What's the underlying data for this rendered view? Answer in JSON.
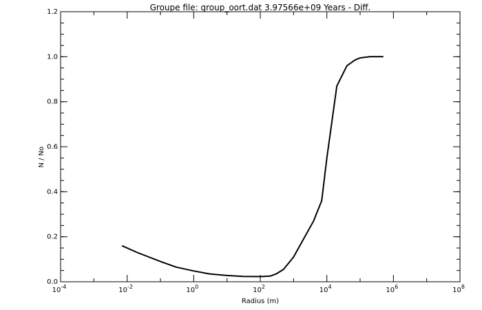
{
  "chart_data": {
    "type": "line",
    "title": "Groupe file: group_oort.dat  3.97566e+09 Years - Diff.",
    "xlabel": "Radius (m)",
    "ylabel": "N / No",
    "xscale": "log",
    "xlim": [
      0.0001,
      100000000
    ],
    "ylim": [
      0.0,
      1.2
    ],
    "x_ticks": [
      {
        "base": "10",
        "exp": "-4",
        "value": 0.0001
      },
      {
        "base": "10",
        "exp": "-2",
        "value": 0.01
      },
      {
        "base": "10",
        "exp": "0",
        "value": 1
      },
      {
        "base": "10",
        "exp": "2",
        "value": 100
      },
      {
        "base": "10",
        "exp": "4",
        "value": 10000
      },
      {
        "base": "10",
        "exp": "6",
        "value": 1000000
      },
      {
        "base": "10",
        "exp": "8",
        "value": 100000000
      }
    ],
    "y_ticks": [
      "0.0",
      "0.2",
      "0.4",
      "0.6",
      "0.8",
      "1.0",
      "1.2"
    ],
    "grid": false,
    "legend": "none",
    "series": [
      {
        "color": "#000000",
        "x": [
          0.007,
          0.02,
          0.1,
          0.3,
          1,
          3,
          10,
          30,
          100,
          200,
          300,
          500,
          1000,
          2000,
          4000,
          7000,
          10000,
          20000,
          40000,
          70000,
          100000,
          200000,
          500000
        ],
        "y": [
          0.16,
          0.13,
          0.09,
          0.065,
          0.048,
          0.035,
          0.028,
          0.024,
          0.023,
          0.025,
          0.035,
          0.055,
          0.11,
          0.19,
          0.27,
          0.36,
          0.55,
          0.87,
          0.96,
          0.985,
          0.995,
          1.0,
          1.0
        ]
      }
    ]
  }
}
